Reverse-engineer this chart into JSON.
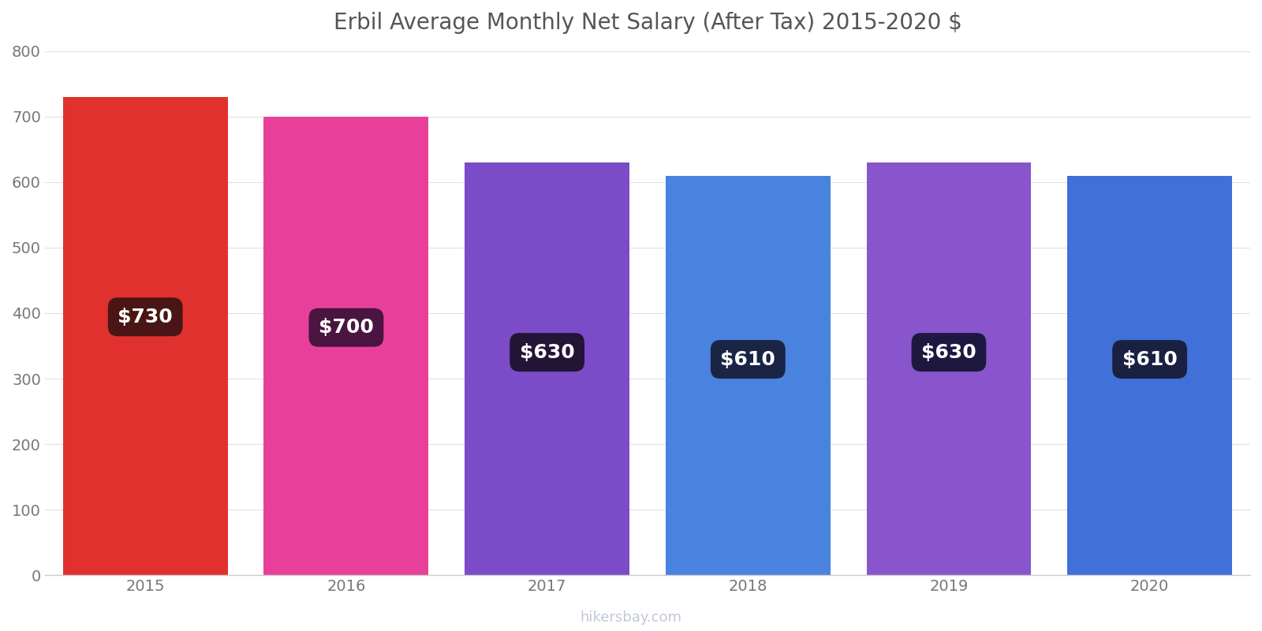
{
  "title": "Erbil Average Monthly Net Salary (After Tax) 2015-2020 $",
  "years": [
    2015,
    2016,
    2017,
    2018,
    2019,
    2020
  ],
  "values": [
    730,
    700,
    630,
    610,
    630,
    610
  ],
  "bar_colors": [
    "#e0312e",
    "#e8409a",
    "#7b4bc8",
    "#4a82e0",
    "#8855cc",
    "#4070d8"
  ],
  "label_bg_colors": [
    "#4a1515",
    "#4a1540",
    "#221535",
    "#1a2545",
    "#1e1840",
    "#1a2040"
  ],
  "ylim": [
    0,
    800
  ],
  "yticks": [
    0,
    100,
    200,
    300,
    400,
    500,
    600,
    700,
    800
  ],
  "title_fontsize": 20,
  "tick_fontsize": 14,
  "label_fontsize": 18,
  "watermark": "hikersbay.com",
  "background_color": "#ffffff"
}
